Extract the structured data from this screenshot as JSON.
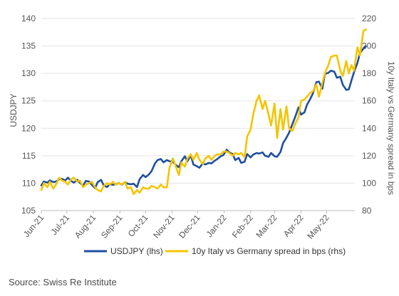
{
  "chart_data": {
    "type": "line",
    "title": "",
    "xlabel": "",
    "ylabel_left": "USDJPY",
    "ylabel_right": "10y Italy vs Germany spread in bps",
    "ylim_left": [
      105,
      140
    ],
    "ylim_right": [
      80,
      220
    ],
    "yticks_left": [
      105,
      110,
      115,
      120,
      125,
      130,
      135,
      140
    ],
    "yticks_right": [
      80,
      100,
      120,
      140,
      160,
      180,
      200,
      220
    ],
    "x_tick_labels": [
      "Jun-21",
      "Jul-21",
      "Aug-21",
      "Sep-21",
      "Oct-21",
      "Nov-21",
      "Dec-21",
      "Jan-22",
      "Feb-22",
      "Mar-22",
      "Apr-22",
      "May-22"
    ],
    "x_tick_dates": [
      "2021-06-01",
      "2021-07-01",
      "2021-08-01",
      "2021-09-01",
      "2021-10-01",
      "2021-11-01",
      "2021-12-01",
      "2022-01-01",
      "2022-02-01",
      "2022-03-01",
      "2022-04-01",
      "2022-05-01"
    ],
    "xlim": [
      "2021-06-01",
      "2022-06-03"
    ],
    "grid": "horizontal",
    "legend_position": "bottom",
    "series": [
      {
        "name": "USDJPY (lhs)",
        "axis": "left",
        "color": "#1f4fa0",
        "points": [
          [
            "2021-06-01",
            109.6
          ],
          [
            "2021-06-04",
            110.3
          ],
          [
            "2021-06-08",
            110.1
          ],
          [
            "2021-06-11",
            110.5
          ],
          [
            "2021-06-15",
            110.2
          ],
          [
            "2021-06-18",
            110.3
          ],
          [
            "2021-06-22",
            110.7
          ],
          [
            "2021-06-25",
            110.8
          ],
          [
            "2021-06-29",
            110.5
          ],
          [
            "2021-07-02",
            111.0
          ],
          [
            "2021-07-06",
            110.4
          ],
          [
            "2021-07-09",
            110.1
          ],
          [
            "2021-07-13",
            110.6
          ],
          [
            "2021-07-16",
            110.1
          ],
          [
            "2021-07-20",
            109.5
          ],
          [
            "2021-07-23",
            110.4
          ],
          [
            "2021-07-27",
            110.3
          ],
          [
            "2021-07-30",
            109.7
          ],
          [
            "2021-08-03",
            109.1
          ],
          [
            "2021-08-06",
            110.2
          ],
          [
            "2021-08-10",
            110.6
          ],
          [
            "2021-08-13",
            109.6
          ],
          [
            "2021-08-17",
            109.3
          ],
          [
            "2021-08-20",
            109.8
          ],
          [
            "2021-08-24",
            109.7
          ],
          [
            "2021-08-27",
            109.8
          ],
          [
            "2021-08-31",
            110.0
          ],
          [
            "2021-09-03",
            109.7
          ],
          [
            "2021-09-07",
            110.2
          ],
          [
            "2021-09-10",
            109.9
          ],
          [
            "2021-09-14",
            109.8
          ],
          [
            "2021-09-17",
            109.9
          ],
          [
            "2021-09-21",
            109.3
          ],
          [
            "2021-09-24",
            110.7
          ],
          [
            "2021-09-28",
            111.5
          ],
          [
            "2021-10-01",
            111.1
          ],
          [
            "2021-10-05",
            111.6
          ],
          [
            "2021-10-08",
            112.2
          ],
          [
            "2021-10-12",
            113.6
          ],
          [
            "2021-10-15",
            114.2
          ],
          [
            "2021-10-19",
            114.4
          ],
          [
            "2021-10-22",
            113.8
          ],
          [
            "2021-10-26",
            114.2
          ],
          [
            "2021-10-29",
            114.0
          ],
          [
            "2021-11-02",
            113.9
          ],
          [
            "2021-11-05",
            113.4
          ],
          [
            "2021-11-09",
            112.9
          ],
          [
            "2021-11-12",
            114.0
          ],
          [
            "2021-11-16",
            114.9
          ],
          [
            "2021-11-19",
            114.0
          ],
          [
            "2021-11-23",
            115.1
          ],
          [
            "2021-11-26",
            113.4
          ],
          [
            "2021-11-30",
            113.1
          ],
          [
            "2021-12-03",
            112.8
          ],
          [
            "2021-12-07",
            113.6
          ],
          [
            "2021-12-10",
            113.4
          ],
          [
            "2021-12-14",
            113.7
          ],
          [
            "2021-12-17",
            113.6
          ],
          [
            "2021-12-21",
            114.1
          ],
          [
            "2021-12-24",
            114.4
          ],
          [
            "2021-12-28",
            114.9
          ],
          [
            "2021-12-31",
            115.1
          ],
          [
            "2022-01-04",
            116.1
          ],
          [
            "2022-01-07",
            115.6
          ],
          [
            "2022-01-11",
            115.3
          ],
          [
            "2022-01-14",
            114.2
          ],
          [
            "2022-01-18",
            114.6
          ],
          [
            "2022-01-21",
            113.7
          ],
          [
            "2022-01-25",
            113.9
          ],
          [
            "2022-01-28",
            115.3
          ],
          [
            "2022-02-01",
            114.7
          ],
          [
            "2022-02-04",
            115.2
          ],
          [
            "2022-02-08",
            115.5
          ],
          [
            "2022-02-11",
            115.4
          ],
          [
            "2022-02-15",
            115.6
          ],
          [
            "2022-02-18",
            115.0
          ],
          [
            "2022-02-22",
            114.8
          ],
          [
            "2022-02-25",
            115.5
          ],
          [
            "2022-03-01",
            114.9
          ],
          [
            "2022-03-04",
            114.8
          ],
          [
            "2022-03-08",
            115.7
          ],
          [
            "2022-03-11",
            117.3
          ],
          [
            "2022-03-15",
            118.3
          ],
          [
            "2022-03-18",
            119.2
          ],
          [
            "2022-03-22",
            120.8
          ],
          [
            "2022-03-25",
            122.0
          ],
          [
            "2022-03-29",
            123.8
          ],
          [
            "2022-04-01",
            122.5
          ],
          [
            "2022-04-05",
            122.9
          ],
          [
            "2022-04-08",
            124.3
          ],
          [
            "2022-04-12",
            125.4
          ],
          [
            "2022-04-15",
            126.4
          ],
          [
            "2022-04-19",
            128.4
          ],
          [
            "2022-04-22",
            128.5
          ],
          [
            "2022-04-26",
            127.2
          ],
          [
            "2022-04-29",
            129.9
          ],
          [
            "2022-05-03",
            130.1
          ],
          [
            "2022-05-06",
            130.5
          ],
          [
            "2022-05-10",
            130.3
          ],
          [
            "2022-05-13",
            129.2
          ],
          [
            "2022-05-17",
            129.4
          ],
          [
            "2022-05-20",
            127.9
          ],
          [
            "2022-05-24",
            127.0
          ],
          [
            "2022-05-27",
            127.1
          ],
          [
            "2022-05-30",
            128.7
          ],
          [
            "2022-06-02",
            130.2
          ],
          [
            "2022-06-06",
            131.9
          ],
          [
            "2022-06-09",
            133.7
          ],
          [
            "2022-06-13",
            134.5
          ],
          [
            "2022-06-16",
            134.9
          ]
        ]
      },
      {
        "name": "10y Italy vs Germany spread in bps (rhs)",
        "axis": "right",
        "color": "#f5c400",
        "points": [
          [
            "2021-06-01",
            95
          ],
          [
            "2021-06-04",
            100
          ],
          [
            "2021-06-08",
            97
          ],
          [
            "2021-06-11",
            101
          ],
          [
            "2021-06-15",
            96
          ],
          [
            "2021-06-18",
            99
          ],
          [
            "2021-06-22",
            104
          ],
          [
            "2021-06-25",
            102
          ],
          [
            "2021-06-29",
            101
          ],
          [
            "2021-07-02",
            99
          ],
          [
            "2021-07-06",
            103
          ],
          [
            "2021-07-09",
            104
          ],
          [
            "2021-07-13",
            101
          ],
          [
            "2021-07-16",
            102
          ],
          [
            "2021-07-20",
            97
          ],
          [
            "2021-07-23",
            99
          ],
          [
            "2021-07-27",
            100
          ],
          [
            "2021-07-30",
            101
          ],
          [
            "2021-08-03",
            97
          ],
          [
            "2021-08-06",
            95
          ],
          [
            "2021-08-10",
            94
          ],
          [
            "2021-08-13",
            98
          ],
          [
            "2021-08-17",
            100
          ],
          [
            "2021-08-20",
            99
          ],
          [
            "2021-08-24",
            101
          ],
          [
            "2021-08-27",
            99
          ],
          [
            "2021-08-31",
            100
          ],
          [
            "2021-09-03",
            99
          ],
          [
            "2021-09-07",
            101
          ],
          [
            "2021-09-10",
            96
          ],
          [
            "2021-09-14",
            97
          ],
          [
            "2021-09-17",
            92
          ],
          [
            "2021-09-21",
            95
          ],
          [
            "2021-09-24",
            93
          ],
          [
            "2021-09-28",
            97
          ],
          [
            "2021-10-01",
            96
          ],
          [
            "2021-10-05",
            96
          ],
          [
            "2021-10-08",
            98
          ],
          [
            "2021-10-12",
            97
          ],
          [
            "2021-10-15",
            96
          ],
          [
            "2021-10-19",
            99
          ],
          [
            "2021-10-22",
            97
          ],
          [
            "2021-10-26",
            97
          ],
          [
            "2021-10-29",
            111
          ],
          [
            "2021-11-02",
            118
          ],
          [
            "2021-11-05",
            113
          ],
          [
            "2021-11-09",
            106
          ],
          [
            "2021-11-12",
            115
          ],
          [
            "2021-11-16",
            112
          ],
          [
            "2021-11-19",
            118
          ],
          [
            "2021-11-23",
            121
          ],
          [
            "2021-11-26",
            117
          ],
          [
            "2021-11-30",
            122
          ],
          [
            "2021-12-03",
            117
          ],
          [
            "2021-12-07",
            114
          ],
          [
            "2021-12-10",
            118
          ],
          [
            "2021-12-14",
            120
          ],
          [
            "2021-12-17",
            117
          ],
          [
            "2021-12-21",
            120
          ],
          [
            "2021-12-24",
            121
          ],
          [
            "2021-12-28",
            121
          ],
          [
            "2021-12-31",
            123
          ],
          [
            "2022-01-04",
            123
          ],
          [
            "2022-01-07",
            122
          ],
          [
            "2022-01-11",
            120
          ],
          [
            "2022-01-14",
            122
          ],
          [
            "2022-01-18",
            121
          ],
          [
            "2022-01-21",
            122
          ],
          [
            "2022-01-25",
            119
          ],
          [
            "2022-01-28",
            134
          ],
          [
            "2022-02-01",
            139
          ],
          [
            "2022-02-04",
            150
          ],
          [
            "2022-02-08",
            160
          ],
          [
            "2022-02-11",
            164
          ],
          [
            "2022-02-15",
            154
          ],
          [
            "2022-02-18",
            160
          ],
          [
            "2022-02-22",
            150
          ],
          [
            "2022-02-25",
            142
          ],
          [
            "2022-03-01",
            158
          ],
          [
            "2022-03-04",
            133
          ],
          [
            "2022-03-08",
            154
          ],
          [
            "2022-03-11",
            139
          ],
          [
            "2022-03-15",
            156
          ],
          [
            "2022-03-18",
            140
          ],
          [
            "2022-03-22",
            138
          ],
          [
            "2022-03-25",
            143
          ],
          [
            "2022-03-29",
            148
          ],
          [
            "2022-04-01",
            160
          ],
          [
            "2022-04-05",
            161
          ],
          [
            "2022-04-08",
            163
          ],
          [
            "2022-04-12",
            166
          ],
          [
            "2022-04-15",
            167
          ],
          [
            "2022-04-19",
            172
          ],
          [
            "2022-04-22",
            163
          ],
          [
            "2022-04-26",
            173
          ],
          [
            "2022-04-29",
            180
          ],
          [
            "2022-05-03",
            186
          ],
          [
            "2022-05-06",
            192
          ],
          [
            "2022-05-10",
            193
          ],
          [
            "2022-05-13",
            193
          ],
          [
            "2022-05-17",
            182
          ],
          [
            "2022-05-20",
            178
          ],
          [
            "2022-05-24",
            189
          ],
          [
            "2022-05-27",
            180
          ],
          [
            "2022-05-30",
            186
          ],
          [
            "2022-06-02",
            182
          ],
          [
            "2022-06-06",
            199
          ],
          [
            "2022-06-09",
            193
          ],
          [
            "2022-06-13",
            211
          ],
          [
            "2022-06-16",
            212
          ]
        ]
      }
    ]
  },
  "source": "Source: Swiss Re Institute"
}
